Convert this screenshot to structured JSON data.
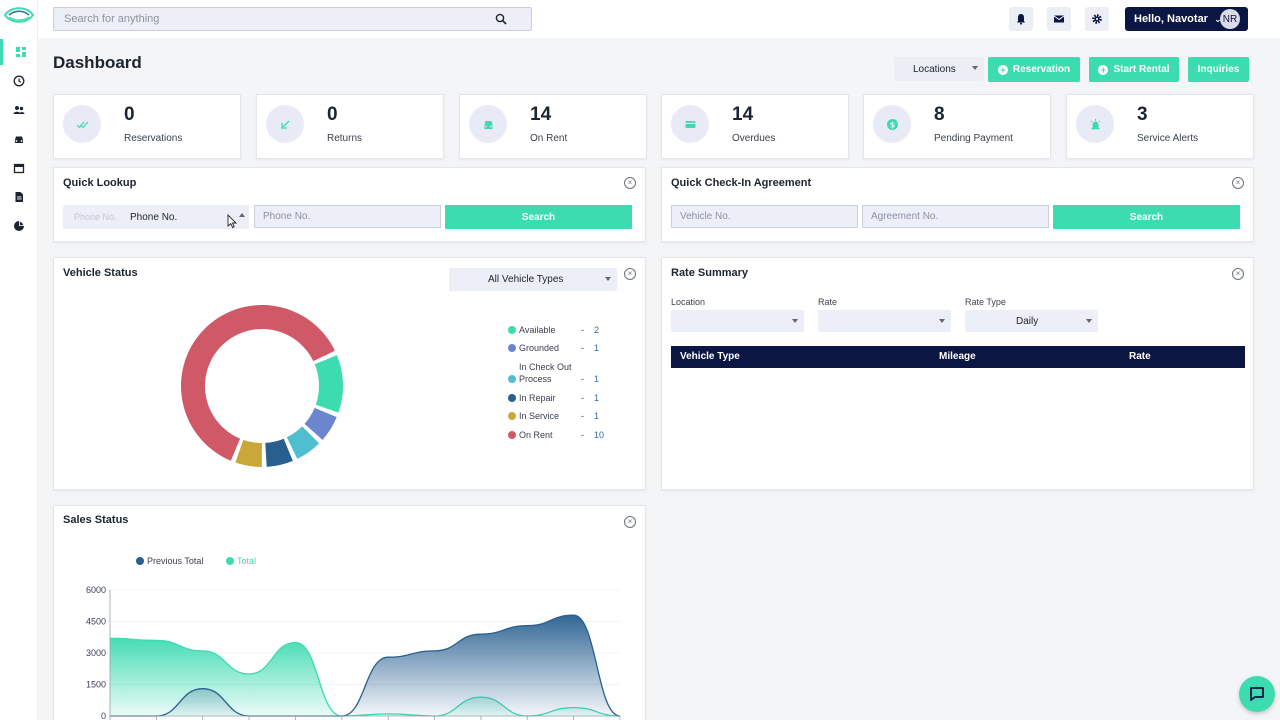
{
  "colors": {
    "accent": "#3ddbb0",
    "navy": "#0b1642",
    "field_bg": "#eceef8",
    "available": "#3ddbb0",
    "grounded": "#6b86cf",
    "check_out": "#4fbfcf",
    "repair": "#275f8f",
    "service": "#c9a838",
    "on_rent": "#cf5966",
    "prev_total": "#275f8f",
    "total": "#3ddbb0"
  },
  "search": {
    "placeholder": "Search for anything"
  },
  "user": {
    "greeting": "Hello, Navotar",
    "initials": "NR"
  },
  "page": {
    "title": "Dashboard"
  },
  "header": {
    "locations_label": "Locations",
    "reservation_label": "Reservation",
    "start_rental_label": "Start Rental",
    "inquiries_label": "Inquiries"
  },
  "stats": [
    {
      "value": "0",
      "label": "Reservations",
      "icon": "double-check-icon"
    },
    {
      "value": "0",
      "label": "Returns",
      "icon": "arrow-down-left-icon"
    },
    {
      "value": "14",
      "label": "On Rent",
      "icon": "car-icon"
    },
    {
      "value": "14",
      "label": "Overdues",
      "icon": "card-icon"
    },
    {
      "value": "8",
      "label": "Pending Payment",
      "icon": "dollar-icon"
    },
    {
      "value": "3",
      "label": "Service Alerts",
      "icon": "alarm-icon"
    }
  ],
  "quick_lookup": {
    "title": "Quick Lookup",
    "type_selected": "Phone No.",
    "type_ghost": "Phone No.",
    "value_placeholder": "Phone No.",
    "search_label": "Search"
  },
  "quick_checkin": {
    "title": "Quick Check-In Agreement",
    "vehicle_placeholder": "Vehicle No.",
    "agreement_placeholder": "Agreement No.",
    "search_label": "Search"
  },
  "vehicle_status": {
    "title": "Vehicle Status",
    "filter": "All Vehicle Types",
    "legend": [
      {
        "label": "Available",
        "value": "2"
      },
      {
        "label": "Grounded",
        "value": "1"
      },
      {
        "label_line1": "In Check Out",
        "label_line2": "Process",
        "value": "1"
      },
      {
        "label": "In Repair",
        "value": "1"
      },
      {
        "label": "In Service",
        "value": "1"
      },
      {
        "label": "On Rent",
        "value": "10"
      }
    ],
    "dash": "-"
  },
  "rate_summary": {
    "title": "Rate Summary",
    "location_label": "Location",
    "rate_label": "Rate",
    "rate_type_label": "Rate Type",
    "rate_type_value": "Daily",
    "columns": [
      "Vehicle Type",
      "Mileage",
      "Rate"
    ]
  },
  "sales_status": {
    "title": "Sales Status",
    "legend": [
      "Previous Total",
      "Total"
    ]
  },
  "chart_data": {
    "type": "area",
    "title": "Sales Status",
    "ylim": [
      0,
      6000
    ],
    "yticks": [
      0,
      1500,
      3000,
      4500,
      6000
    ],
    "series": [
      {
        "name": "Previous Total",
        "values": [
          0,
          0,
          1300,
          0,
          0,
          0,
          2800,
          3100,
          3900,
          4300,
          4800,
          0
        ]
      },
      {
        "name": "Total",
        "values": [
          3700,
          3600,
          3100,
          2000,
          3500,
          0,
          100,
          0,
          900,
          0,
          400,
          0
        ]
      }
    ],
    "grid": false,
    "legend_position": "top"
  }
}
